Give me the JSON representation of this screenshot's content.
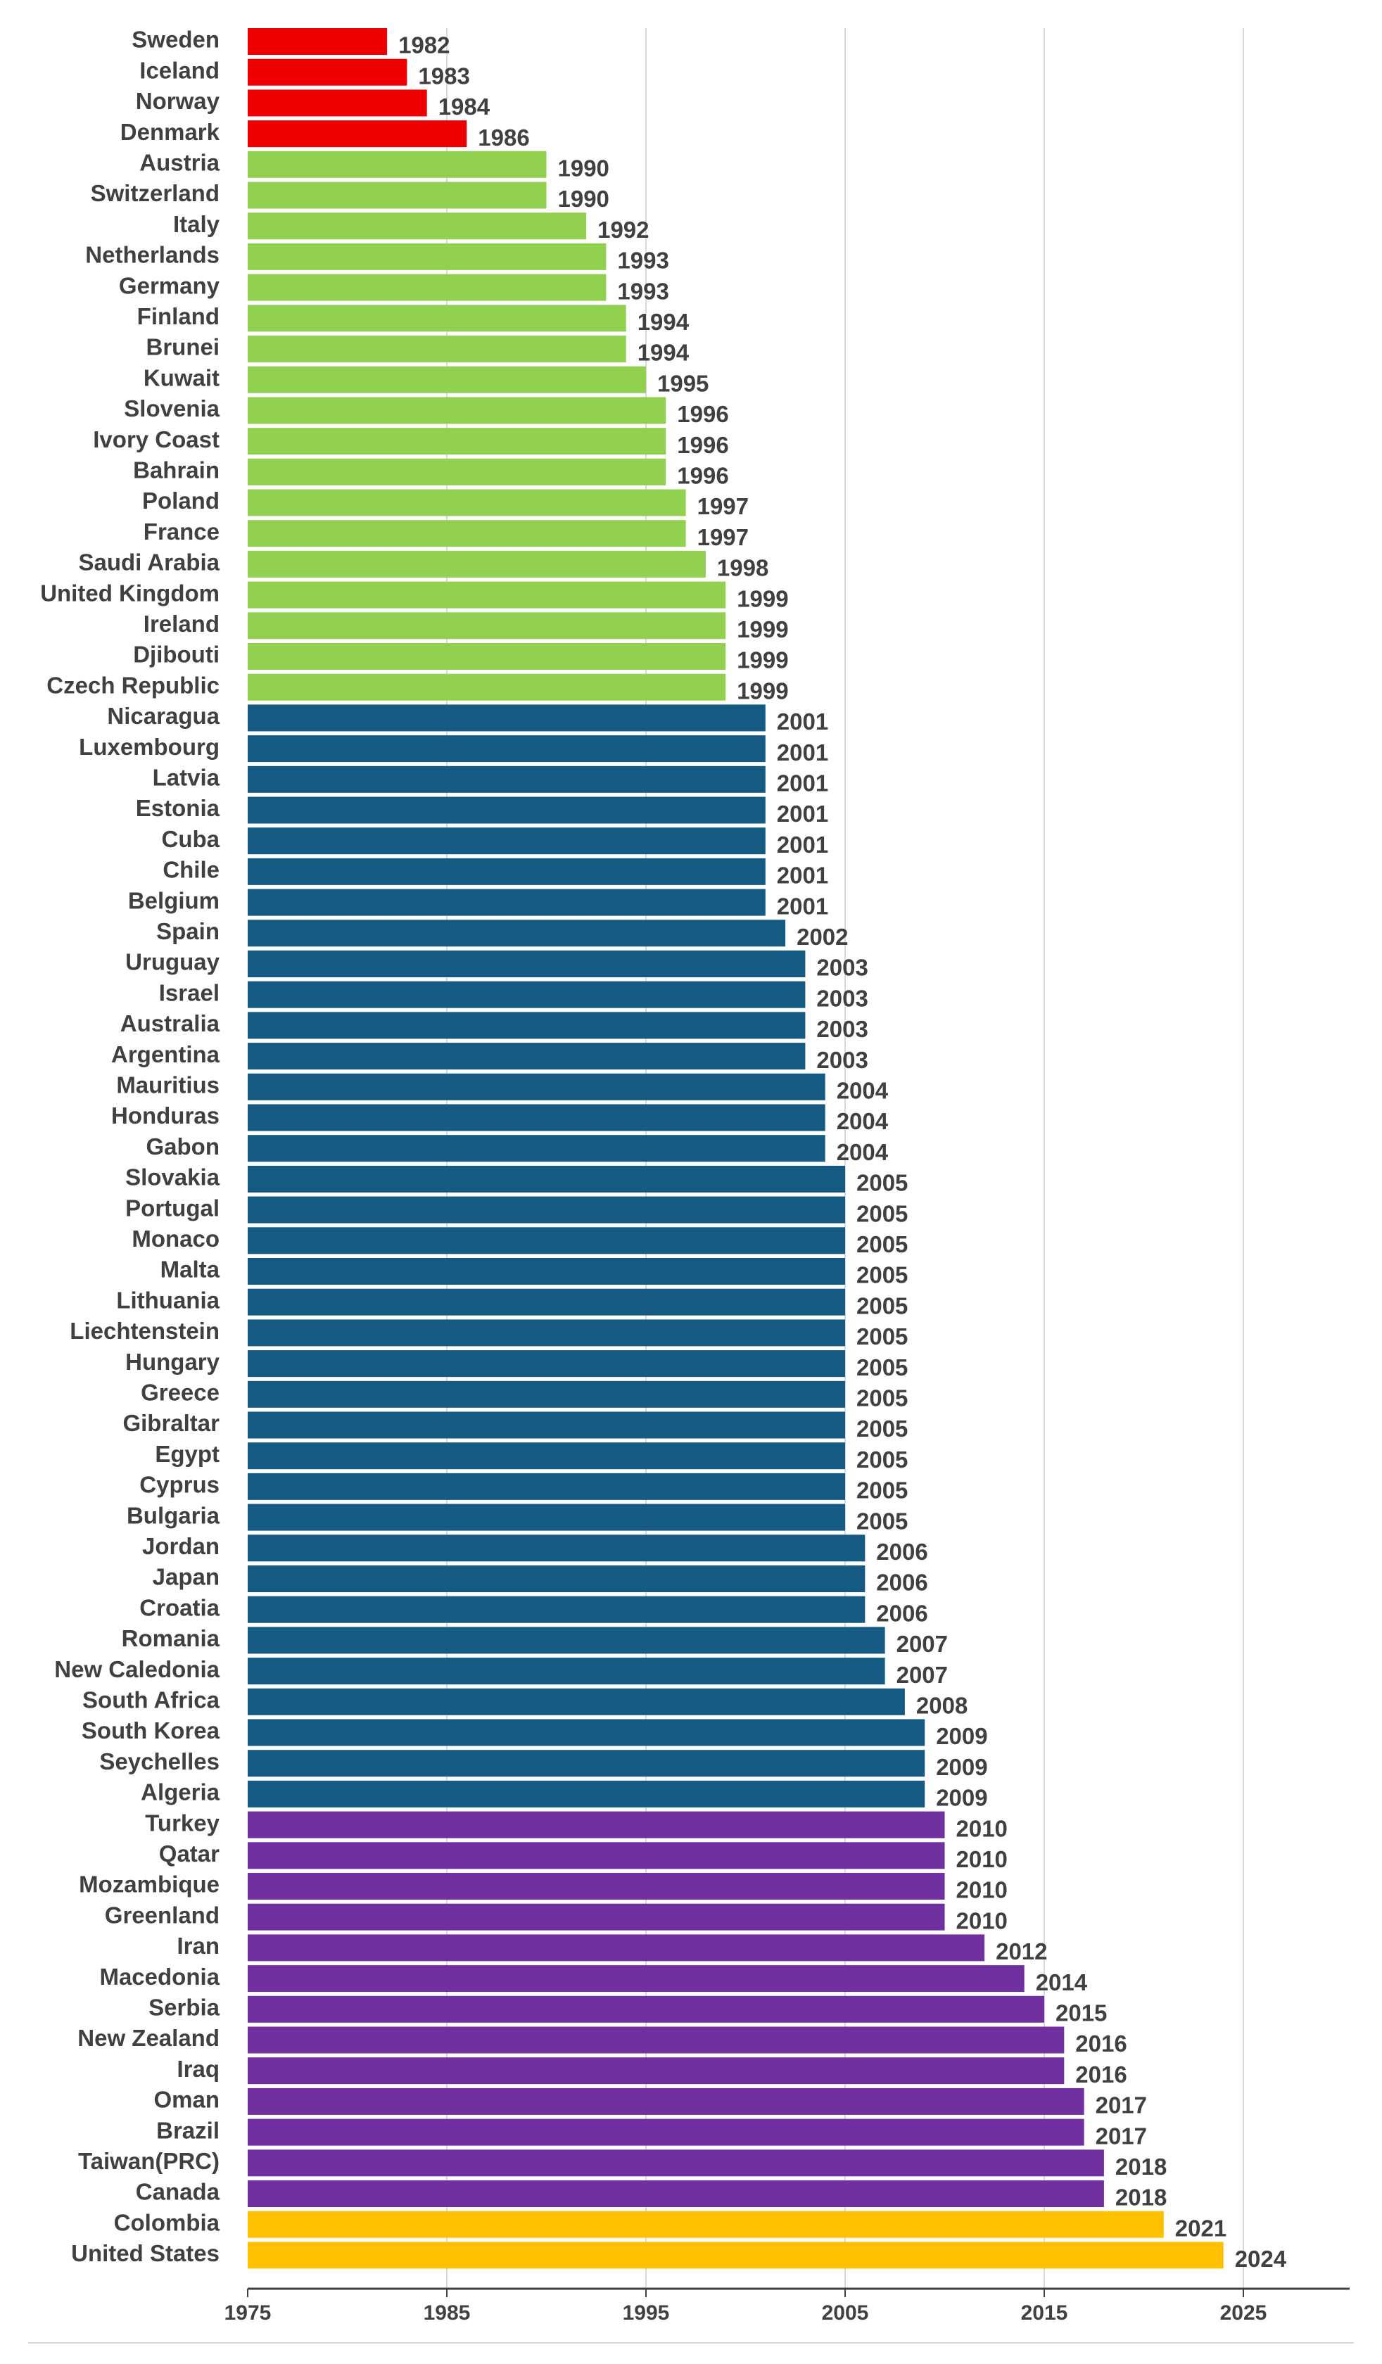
{
  "chart_data": {
    "type": "bar",
    "orientation": "horizontal",
    "title": "",
    "xlabel": "",
    "ylabel": "",
    "xlim": [
      1975,
      2030
    ],
    "xticks": [
      1975,
      1985,
      1995,
      2005,
      2015,
      2025
    ],
    "grid": true,
    "legend": "none",
    "colors": {
      "red": "#ee0000",
      "green": "#92d050",
      "blue": "#155a82",
      "purple": "#7030a0",
      "gold": "#ffc000",
      "grid": "#d9d9d9",
      "axis": "#404040",
      "text": "#404040"
    },
    "bars": [
      {
        "category": "Sweden",
        "value": 1982,
        "color": "red"
      },
      {
        "category": "Iceland",
        "value": 1983,
        "color": "red"
      },
      {
        "category": "Norway",
        "value": 1984,
        "color": "red"
      },
      {
        "category": "Denmark",
        "value": 1986,
        "color": "red"
      },
      {
        "category": "Austria",
        "value": 1990,
        "color": "green"
      },
      {
        "category": "Switzerland",
        "value": 1990,
        "color": "green"
      },
      {
        "category": "Italy",
        "value": 1992,
        "color": "green"
      },
      {
        "category": "Netherlands",
        "value": 1993,
        "color": "green"
      },
      {
        "category": "Germany",
        "value": 1993,
        "color": "green"
      },
      {
        "category": "Finland",
        "value": 1994,
        "color": "green"
      },
      {
        "category": "Brunei",
        "value": 1994,
        "color": "green"
      },
      {
        "category": "Kuwait",
        "value": 1995,
        "color": "green"
      },
      {
        "category": "Slovenia",
        "value": 1996,
        "color": "green"
      },
      {
        "category": "Ivory Coast",
        "value": 1996,
        "color": "green"
      },
      {
        "category": "Bahrain",
        "value": 1996,
        "color": "green"
      },
      {
        "category": "Poland",
        "value": 1997,
        "color": "green"
      },
      {
        "category": "France",
        "value": 1997,
        "color": "green"
      },
      {
        "category": "Saudi Arabia",
        "value": 1998,
        "color": "green"
      },
      {
        "category": "United Kingdom",
        "value": 1999,
        "color": "green"
      },
      {
        "category": "Ireland",
        "value": 1999,
        "color": "green"
      },
      {
        "category": "Djibouti",
        "value": 1999,
        "color": "green"
      },
      {
        "category": "Czech Republic",
        "value": 1999,
        "color": "green"
      },
      {
        "category": "Nicaragua",
        "value": 2001,
        "color": "blue"
      },
      {
        "category": "Luxembourg",
        "value": 2001,
        "color": "blue"
      },
      {
        "category": "Latvia",
        "value": 2001,
        "color": "blue"
      },
      {
        "category": "Estonia",
        "value": 2001,
        "color": "blue"
      },
      {
        "category": "Cuba",
        "value": 2001,
        "color": "blue"
      },
      {
        "category": "Chile",
        "value": 2001,
        "color": "blue"
      },
      {
        "category": "Belgium",
        "value": 2001,
        "color": "blue"
      },
      {
        "category": "Spain",
        "value": 2002,
        "color": "blue"
      },
      {
        "category": "Uruguay",
        "value": 2003,
        "color": "blue"
      },
      {
        "category": "Israel",
        "value": 2003,
        "color": "blue"
      },
      {
        "category": "Australia",
        "value": 2003,
        "color": "blue"
      },
      {
        "category": "Argentina",
        "value": 2003,
        "color": "blue"
      },
      {
        "category": "Mauritius",
        "value": 2004,
        "color": "blue"
      },
      {
        "category": "Honduras",
        "value": 2004,
        "color": "blue"
      },
      {
        "category": "Gabon",
        "value": 2004,
        "color": "blue"
      },
      {
        "category": "Slovakia",
        "value": 2005,
        "color": "blue"
      },
      {
        "category": "Portugal",
        "value": 2005,
        "color": "blue"
      },
      {
        "category": "Monaco",
        "value": 2005,
        "color": "blue"
      },
      {
        "category": "Malta",
        "value": 2005,
        "color": "blue"
      },
      {
        "category": "Lithuania",
        "value": 2005,
        "color": "blue"
      },
      {
        "category": "Liechtenstein",
        "value": 2005,
        "color": "blue"
      },
      {
        "category": "Hungary",
        "value": 2005,
        "color": "blue"
      },
      {
        "category": "Greece",
        "value": 2005,
        "color": "blue"
      },
      {
        "category": "Gibraltar",
        "value": 2005,
        "color": "blue"
      },
      {
        "category": "Egypt",
        "value": 2005,
        "color": "blue"
      },
      {
        "category": "Cyprus",
        "value": 2005,
        "color": "blue"
      },
      {
        "category": "Bulgaria",
        "value": 2005,
        "color": "blue"
      },
      {
        "category": "Jordan",
        "value": 2006,
        "color": "blue"
      },
      {
        "category": "Japan",
        "value": 2006,
        "color": "blue"
      },
      {
        "category": "Croatia",
        "value": 2006,
        "color": "blue"
      },
      {
        "category": "Romania",
        "value": 2007,
        "color": "blue"
      },
      {
        "category": "New Caledonia",
        "value": 2007,
        "color": "blue"
      },
      {
        "category": "South Africa",
        "value": 2008,
        "color": "blue"
      },
      {
        "category": "South Korea",
        "value": 2009,
        "color": "blue"
      },
      {
        "category": "Seychelles",
        "value": 2009,
        "color": "blue"
      },
      {
        "category": "Algeria",
        "value": 2009,
        "color": "blue"
      },
      {
        "category": "Turkey",
        "value": 2010,
        "color": "purple"
      },
      {
        "category": "Qatar",
        "value": 2010,
        "color": "purple"
      },
      {
        "category": "Mozambique",
        "value": 2010,
        "color": "purple"
      },
      {
        "category": "Greenland",
        "value": 2010,
        "color": "purple"
      },
      {
        "category": "Iran",
        "value": 2012,
        "color": "purple"
      },
      {
        "category": "Macedonia",
        "value": 2014,
        "color": "purple"
      },
      {
        "category": "Serbia",
        "value": 2015,
        "color": "purple"
      },
      {
        "category": "New Zealand",
        "value": 2016,
        "color": "purple"
      },
      {
        "category": "Iraq",
        "value": 2016,
        "color": "purple"
      },
      {
        "category": "Oman",
        "value": 2017,
        "color": "purple"
      },
      {
        "category": "Brazil",
        "value": 2017,
        "color": "purple"
      },
      {
        "category": "Taiwan(PRC)",
        "value": 2018,
        "color": "purple"
      },
      {
        "category": "Canada",
        "value": 2018,
        "color": "purple"
      },
      {
        "category": "Colombia",
        "value": 2021,
        "color": "gold"
      },
      {
        "category": "United States",
        "value": 2024,
        "color": "gold"
      }
    ]
  }
}
